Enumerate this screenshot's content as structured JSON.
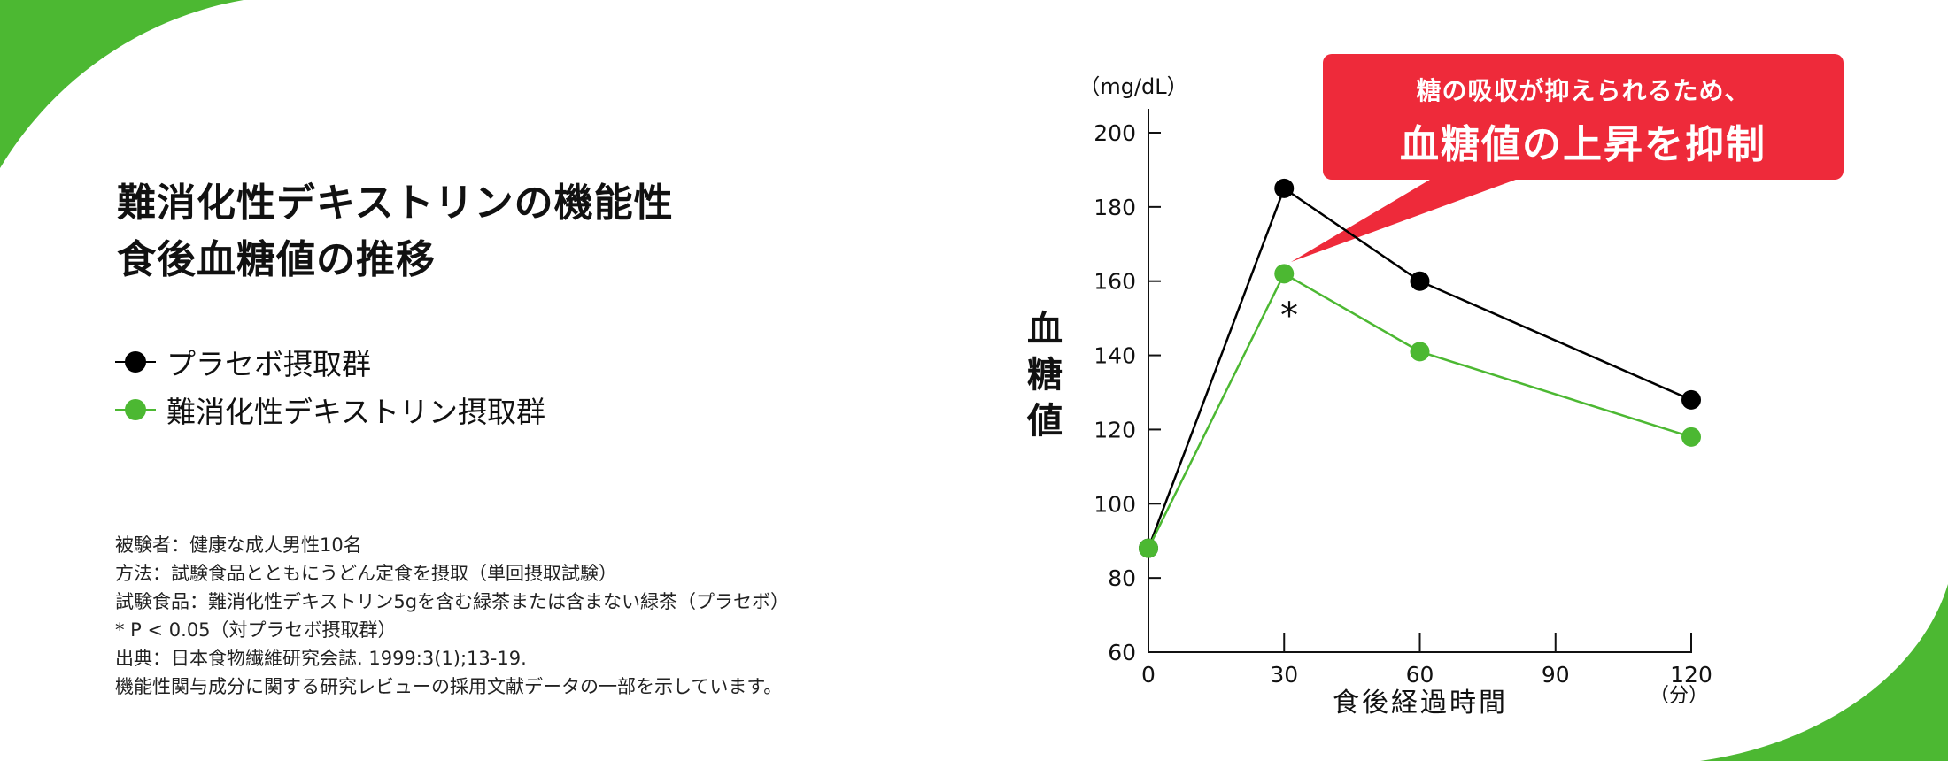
{
  "title": {
    "line1": "難消化性デキストリンの機能性",
    "line2": "食後血糖値の推移"
  },
  "legend": [
    {
      "label": "プラセボ摂取群",
      "color": "#000000"
    },
    {
      "label": "難消化性デキストリン摂取群",
      "color": "#4cb832"
    }
  ],
  "notes": [
    "被験者：健康な成人男性10名",
    "方法：試験食品とともにうどん定食を摂取（単回摂取試験）",
    "試験食品：難消化性デキストリン5gを含む緑茶または含まない緑茶（プラセボ）",
    "* P < 0.05（対プラセボ摂取群）",
    "出典：日本食物繊維研究会誌. 1999:3(1);13-19.",
    "機能性関与成分に関する研究レビューの採用文献データの一部を示しています。"
  ],
  "callout": {
    "line1": "糖の吸収が抑えられるため、",
    "line2": "血糖値の上昇を抑制",
    "color": "#ee2a3a"
  },
  "colors": {
    "accent_green": "#4cb832",
    "callout_red": "#ee2a3a",
    "placebo_black": "#000000"
  },
  "chart_data": {
    "type": "line",
    "title": "食後血糖値の推移",
    "xlabel": "食後経過時間",
    "x_unit": "（分）",
    "ylabel": "血糖値",
    "y_unit": "（mg/dL）",
    "x": [
      0,
      30,
      60,
      120
    ],
    "x_ticks": [
      "0",
      "30",
      "60",
      "90",
      "120"
    ],
    "y_ticks": [
      "60",
      "80",
      "100",
      "120",
      "140",
      "160",
      "180",
      "200"
    ],
    "xlim": [
      0,
      120
    ],
    "ylim": [
      60,
      200
    ],
    "grid": false,
    "legend_position": "left",
    "series": [
      {
        "name": "プラセボ摂取群",
        "color": "#000000",
        "values": [
          88,
          185,
          160,
          128
        ]
      },
      {
        "name": "難消化性デキストリン摂取群",
        "color": "#4cb832",
        "values": [
          88,
          162,
          141,
          118
        ]
      }
    ],
    "annotations": [
      {
        "text": "*",
        "x": 30,
        "series": "難消化性デキストリン摂取群",
        "meaning": "P < 0.05"
      },
      {
        "text": "糖の吸収が抑えられるため、血糖値の上昇を抑制",
        "type": "callout",
        "points_to": {
          "x": 30,
          "y": 162
        }
      }
    ]
  }
}
